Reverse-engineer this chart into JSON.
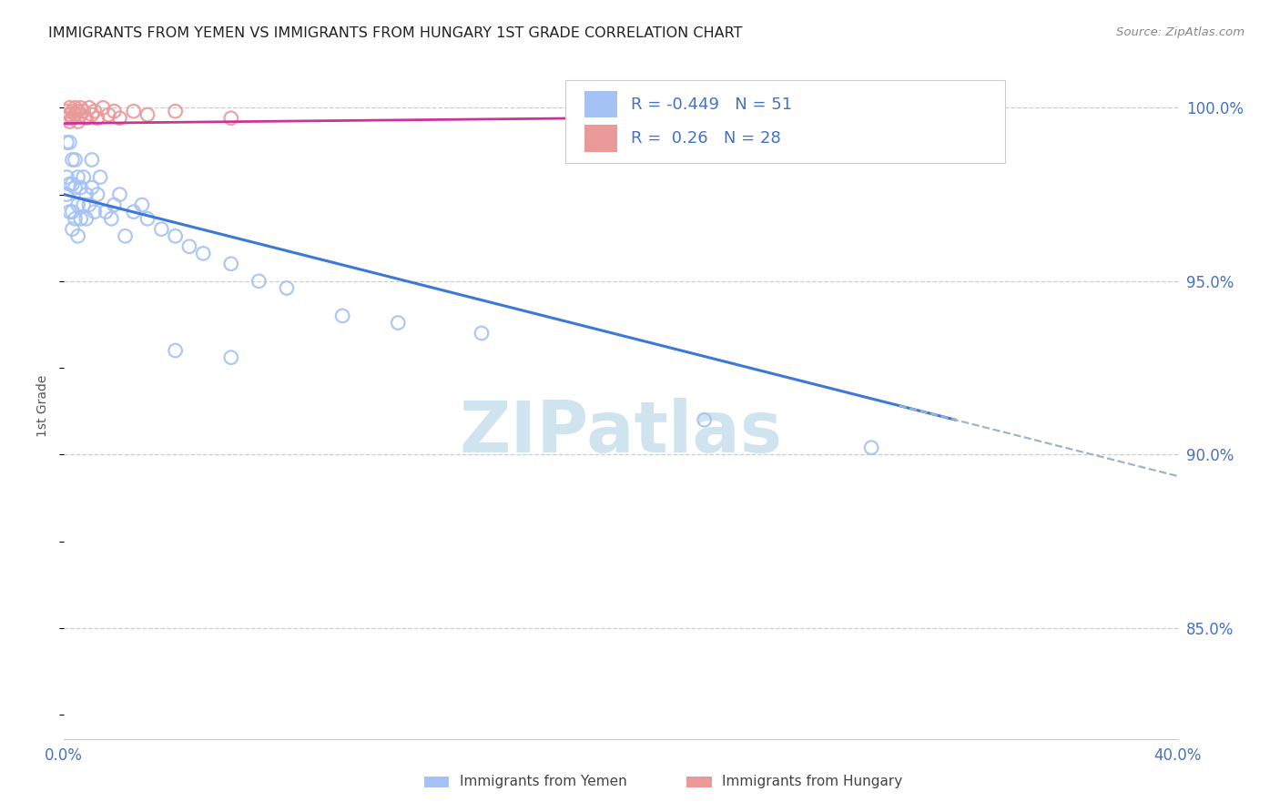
{
  "title": "IMMIGRANTS FROM YEMEN VS IMMIGRANTS FROM HUNGARY 1ST GRADE CORRELATION CHART",
  "source": "Source: ZipAtlas.com",
  "ylabel": "1st Grade",
  "xlim": [
    0.0,
    0.4
  ],
  "ylim": [
    0.818,
    1.01
  ],
  "xticks": [
    0.0,
    0.05,
    0.1,
    0.15,
    0.2,
    0.25,
    0.3,
    0.35,
    0.4
  ],
  "xticklabels": [
    "0.0%",
    "",
    "",
    "",
    "",
    "",
    "",
    "",
    "40.0%"
  ],
  "yticks": [
    0.85,
    0.9,
    0.95,
    1.0
  ],
  "yticklabels": [
    "85.0%",
    "90.0%",
    "95.0%",
    "100.0%"
  ],
  "R_yemen": -0.449,
  "N_yemen": 51,
  "R_hungary": 0.26,
  "N_hungary": 28,
  "legend_label_yemen": "Immigrants from Yemen",
  "legend_label_hungary": "Immigrants from Hungary",
  "blue_scatter": "#a4c2f4",
  "blue_line": "#3c78d8",
  "pink_scatter": "#ea9999",
  "pink_line": "#cc3399",
  "dashed_color": "#a0b4c8",
  "grid_color": "#cccccc",
  "tick_color": "#4472c4",
  "title_color": "#222222",
  "source_color": "#888888",
  "watermark_color": "#d0e4f0",
  "yemen_x": [
    0.001,
    0.001,
    0.001,
    0.002,
    0.002,
    0.002,
    0.002,
    0.003,
    0.003,
    0.003,
    0.003,
    0.004,
    0.004,
    0.004,
    0.005,
    0.005,
    0.005,
    0.006,
    0.006,
    0.007,
    0.007,
    0.008,
    0.008,
    0.009,
    0.01,
    0.01,
    0.011,
    0.012,
    0.013,
    0.015,
    0.017,
    0.018,
    0.02,
    0.022,
    0.025,
    0.028,
    0.03,
    0.035,
    0.04,
    0.045,
    0.05,
    0.06,
    0.07,
    0.08,
    0.1,
    0.12,
    0.15,
    0.04,
    0.06,
    0.23,
    0.29
  ],
  "yemen_y": [
    0.99,
    0.98,
    0.975,
    0.998,
    0.99,
    0.978,
    0.97,
    0.985,
    0.978,
    0.97,
    0.965,
    0.985,
    0.977,
    0.968,
    0.98,
    0.972,
    0.963,
    0.977,
    0.968,
    0.98,
    0.972,
    0.975,
    0.968,
    0.972,
    0.985,
    0.977,
    0.97,
    0.975,
    0.98,
    0.97,
    0.968,
    0.972,
    0.975,
    0.963,
    0.97,
    0.972,
    0.968,
    0.965,
    0.963,
    0.96,
    0.958,
    0.955,
    0.95,
    0.948,
    0.94,
    0.938,
    0.935,
    0.93,
    0.928,
    0.91,
    0.902
  ],
  "hungary_x": [
    0.001,
    0.001,
    0.002,
    0.002,
    0.002,
    0.003,
    0.003,
    0.004,
    0.004,
    0.005,
    0.005,
    0.006,
    0.006,
    0.007,
    0.008,
    0.009,
    0.01,
    0.011,
    0.012,
    0.014,
    0.016,
    0.018,
    0.02,
    0.025,
    0.03,
    0.04,
    0.06,
    0.29
  ],
  "hungary_y": [
    0.999,
    0.997,
    1.0,
    0.998,
    0.996,
    0.999,
    0.997,
    1.0,
    0.998,
    0.999,
    0.996,
    1.0,
    0.998,
    0.999,
    0.997,
    1.0,
    0.998,
    0.999,
    0.997,
    1.0,
    0.998,
    0.999,
    0.997,
    0.999,
    0.998,
    0.999,
    0.997,
    0.999
  ]
}
